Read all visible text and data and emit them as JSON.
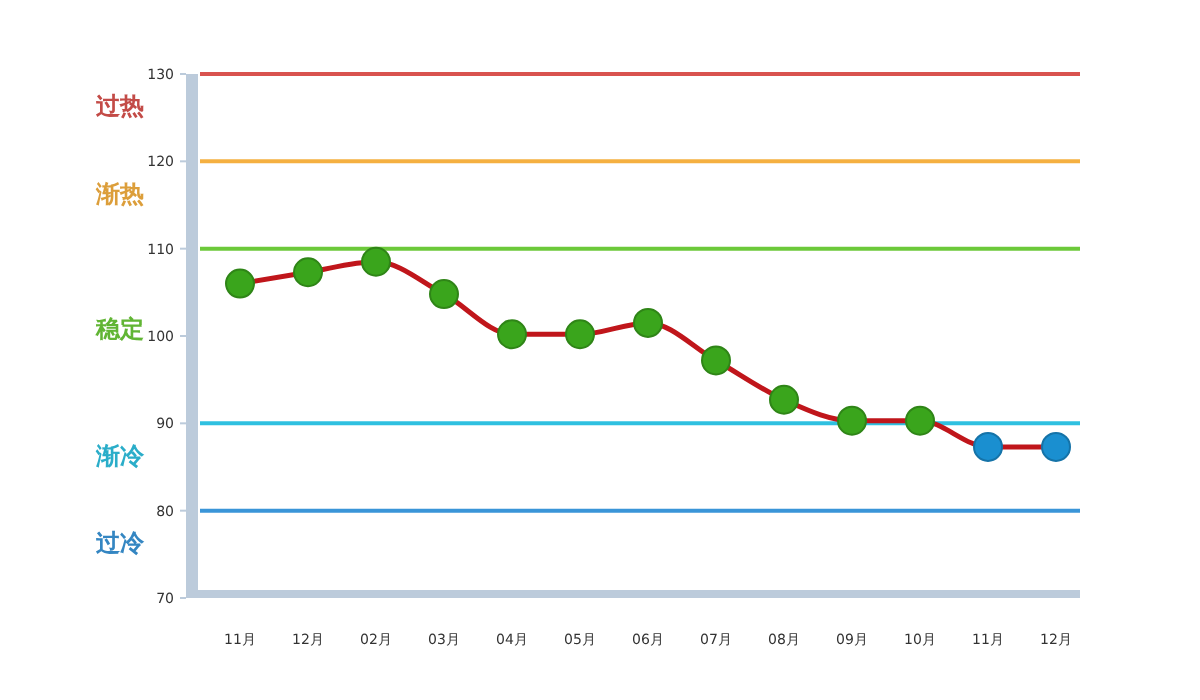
{
  "chart_data": {
    "type": "line",
    "categories": [
      "11月",
      "12月",
      "02月",
      "03月",
      "04月",
      "05月",
      "06月",
      "07月",
      "08月",
      "09月",
      "10月",
      "11月",
      "12月"
    ],
    "series": [
      {
        "color": "#c0161b",
        "colors": [
          "#3aa51c",
          "#3aa51c",
          "#3aa51c",
          "#3aa51c",
          "#3aa51c",
          "#3aa51c",
          "#3aa51c",
          "#3aa51c",
          "#3aa51c",
          "#3aa51c",
          "#3aa51c",
          "#1a8fd0",
          "#1a8fd0"
        ],
        "values": [
          106,
          107.3,
          108.5,
          104.8,
          100.2,
          100.2,
          101.5,
          97.2,
          92.7,
          90.3,
          90.3,
          87.3,
          87.3
        ]
      }
    ],
    "ylim": [
      70,
      130
    ],
    "yticks": [
      70,
      80,
      90,
      100,
      110,
      120,
      130
    ],
    "marker": "circle",
    "line_style": "solid",
    "grid": false,
    "ref_lines": [
      {
        "axis": "y",
        "value": 130,
        "color": "#d9534f"
      },
      {
        "axis": "y",
        "value": 120,
        "color": "#f5b041"
      },
      {
        "axis": "y",
        "value": 110,
        "color": "#6cc93a"
      },
      {
        "axis": "y",
        "value": 90,
        "color": "#2fc0e0"
      },
      {
        "axis": "y",
        "value": 80,
        "color": "#3a95d8"
      }
    ],
    "annotations": [
      "过热",
      "渐热",
      "稳定",
      "渐冷",
      "过冷"
    ]
  }
}
